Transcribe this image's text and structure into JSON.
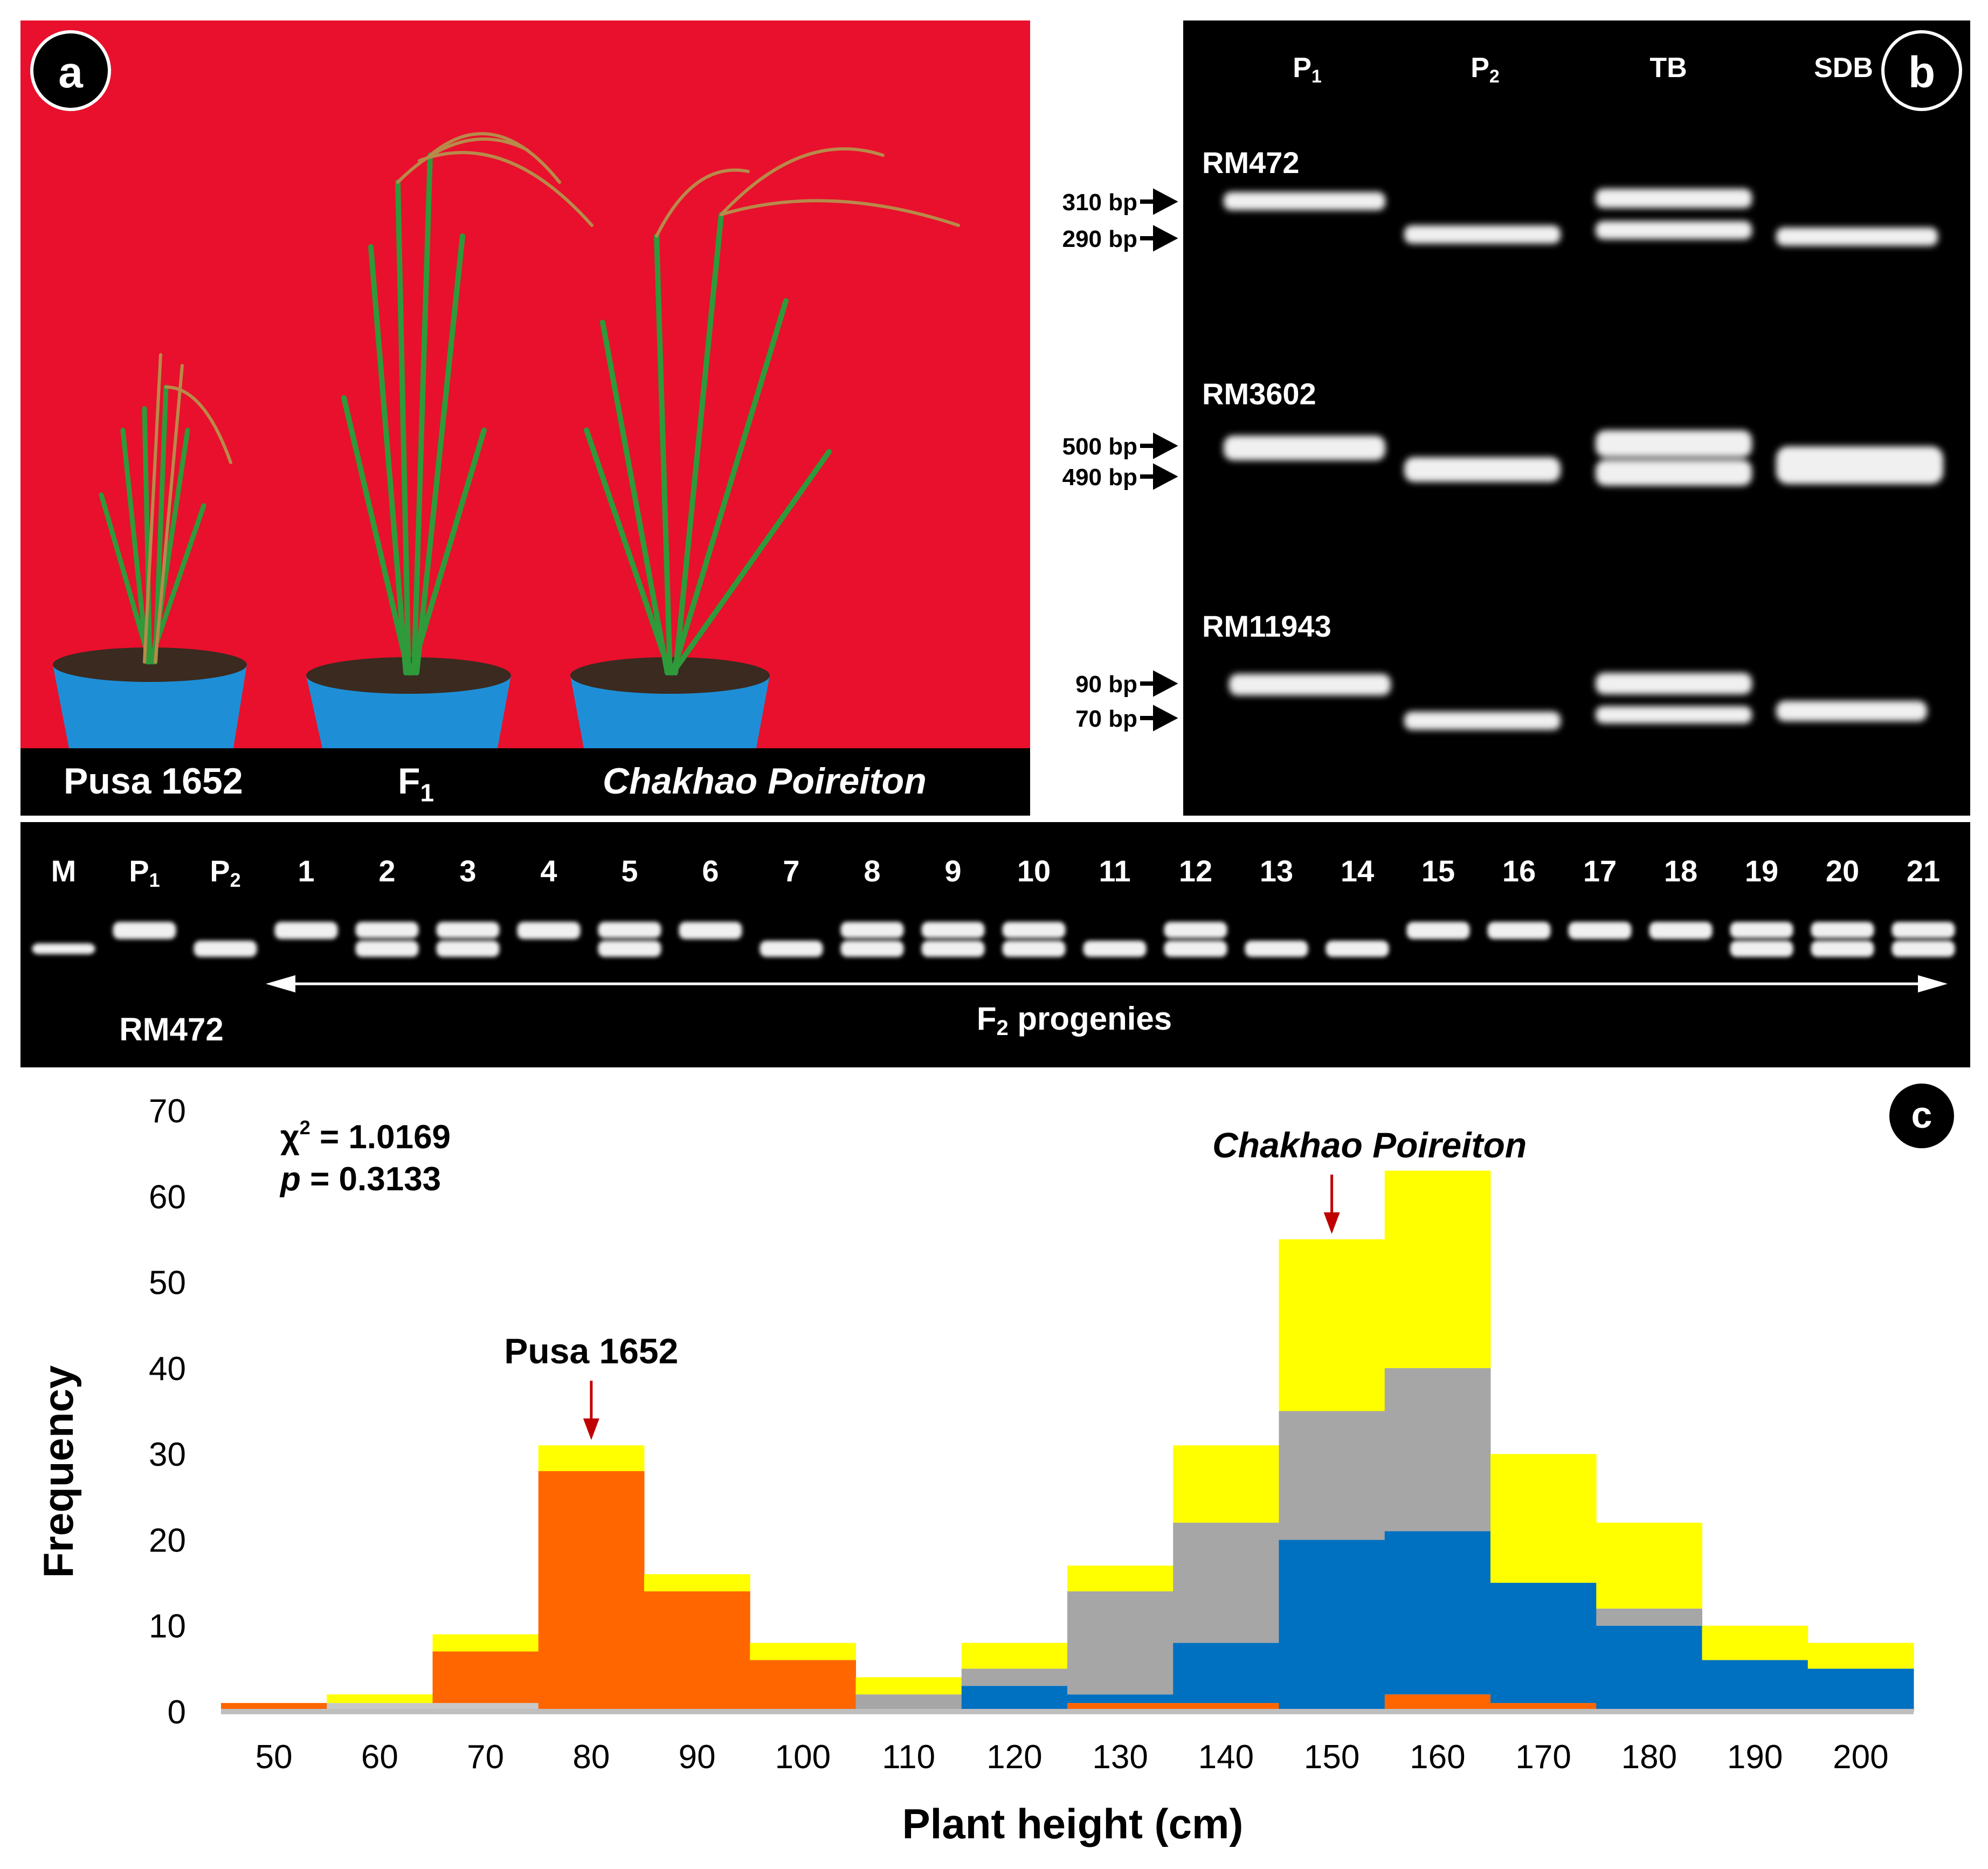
{
  "panel_a": {
    "badge": "a",
    "labels": [
      "Pusa 1652",
      "F",
      "Chakhao Poireiton"
    ],
    "f1_sub": "1",
    "colors": {
      "background": "#e8102c",
      "pot": "#1e8fd6",
      "leaf": "#2e9a3a",
      "panicle": "#b88a4a"
    }
  },
  "panel_b": {
    "badge": "b",
    "lane_headers": [
      {
        "main": "P",
        "sub": "1"
      },
      {
        "main": "P",
        "sub": "2"
      },
      {
        "main": "TB",
        "sub": ""
      },
      {
        "main": "SDB",
        "sub": ""
      }
    ],
    "markers": [
      {
        "name": "RM472",
        "upper": "310 bp",
        "lower": "290 bp"
      },
      {
        "name": "RM3602",
        "upper": "500 bp",
        "lower": "490 bp"
      },
      {
        "name": "RM11943",
        "upper": "90 bp",
        "lower": "70 bp"
      }
    ]
  },
  "gel_bottom": {
    "lanes": [
      {
        "main": "M",
        "sub": ""
      },
      {
        "main": "P",
        "sub": "1"
      },
      {
        "main": "P",
        "sub": "2"
      },
      {
        "main": "1",
        "sub": ""
      },
      {
        "main": "2",
        "sub": ""
      },
      {
        "main": "3",
        "sub": ""
      },
      {
        "main": "4",
        "sub": ""
      },
      {
        "main": "5",
        "sub": ""
      },
      {
        "main": "6",
        "sub": ""
      },
      {
        "main": "7",
        "sub": ""
      },
      {
        "main": "8",
        "sub": ""
      },
      {
        "main": "9",
        "sub": ""
      },
      {
        "main": "10",
        "sub": ""
      },
      {
        "main": "11",
        "sub": ""
      },
      {
        "main": "12",
        "sub": ""
      },
      {
        "main": "13",
        "sub": ""
      },
      {
        "main": "14",
        "sub": ""
      },
      {
        "main": "15",
        "sub": ""
      },
      {
        "main": "16",
        "sub": ""
      },
      {
        "main": "17",
        "sub": ""
      },
      {
        "main": "18",
        "sub": ""
      },
      {
        "main": "19",
        "sub": ""
      },
      {
        "main": "20",
        "sub": ""
      },
      {
        "main": "21",
        "sub": ""
      }
    ],
    "genotypes": [
      "M",
      "P1",
      "P2",
      "P1",
      "H",
      "H",
      "P1",
      "H",
      "P1",
      "P2",
      "H",
      "H",
      "H",
      "P2",
      "H",
      "P2",
      "P2",
      "P1",
      "P1",
      "P1",
      "P1",
      "H",
      "H",
      "H"
    ],
    "marker_label": "RM472",
    "progeny_label_main": "F",
    "progeny_label_sub": "2",
    "progeny_label_rest": " progenies"
  },
  "chart_data": {
    "type": "bar",
    "stacked": true,
    "badge": "c",
    "xlabel": "Plant height (cm)",
    "ylabel": "Frequency",
    "ylim": [
      0,
      70
    ],
    "yticks": [
      "0",
      "10",
      "20",
      "30",
      "40",
      "50",
      "60",
      "70"
    ],
    "categories": [
      "50",
      "60",
      "70",
      "80",
      "90",
      "100",
      "110",
      "120",
      "130",
      "140",
      "150",
      "160",
      "170",
      "180",
      "190",
      "200"
    ],
    "series": [
      {
        "name": "light grey",
        "color": "#c8c8c8",
        "values": [
          0,
          1,
          1,
          0,
          0,
          0,
          0,
          0,
          0,
          0,
          0,
          0,
          0,
          0,
          0,
          0
        ]
      },
      {
        "name": "orange",
        "color": "#ff6600",
        "values": [
          1,
          0,
          6,
          28,
          14,
          6,
          0,
          0,
          1,
          1,
          0,
          2,
          1,
          0,
          0,
          0
        ]
      },
      {
        "name": "blue",
        "color": "#0070c0",
        "values": [
          0,
          0,
          0,
          0,
          0,
          0,
          0,
          3,
          1,
          7,
          20,
          19,
          14,
          10,
          6,
          5
        ]
      },
      {
        "name": "grey",
        "color": "#a6a6a6",
        "values": [
          0,
          0,
          0,
          0,
          0,
          0,
          2,
          2,
          12,
          14,
          15,
          19,
          0,
          2,
          0,
          0
        ]
      },
      {
        "name": "yellow",
        "color": "#ffff00",
        "values": [
          0,
          1,
          2,
          3,
          2,
          2,
          2,
          3,
          3,
          9,
          20,
          23,
          15,
          10,
          4,
          3
        ]
      }
    ],
    "annotations": [
      {
        "text": "Pusa 1652",
        "x": "80",
        "y": 31,
        "italic": false,
        "arrow_color": "#c00000"
      },
      {
        "text": "Chakhao Poireiton",
        "x": "150",
        "y": 55,
        "italic": true,
        "arrow_color": "#c00000"
      }
    ],
    "stats": {
      "chi_symbol": "χ",
      "chi_sup": "2",
      "chi_value": " = 1.0169",
      "p_symbol": "p",
      "p_value": " = 0.3133"
    }
  }
}
